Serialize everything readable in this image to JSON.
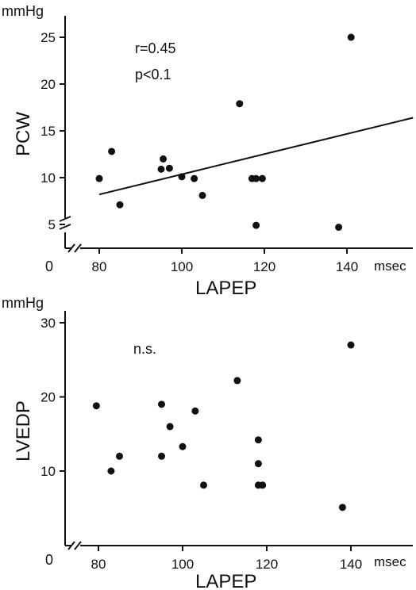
{
  "chart_data": [
    {
      "type": "scatter",
      "unit_y": "mmHg",
      "unit_x": "msec",
      "xlabel": "LAPEP",
      "ylabel": "PCW",
      "x_origin_label": "0",
      "xticks": [
        80,
        100,
        120,
        140
      ],
      "yticks": [
        5,
        10,
        15,
        20,
        25
      ],
      "annotations": [
        "r=0.45",
        "p<0.1"
      ],
      "points": [
        {
          "x": 80,
          "y": 9.9
        },
        {
          "x": 83,
          "y": 12.8
        },
        {
          "x": 85,
          "y": 7.1
        },
        {
          "x": 95,
          "y": 10.9
        },
        {
          "x": 95.5,
          "y": 12.0
        },
        {
          "x": 97,
          "y": 11.0
        },
        {
          "x": 100,
          "y": 10.1
        },
        {
          "x": 103,
          "y": 9.9
        },
        {
          "x": 105,
          "y": 8.1
        },
        {
          "x": 114,
          "y": 17.9
        },
        {
          "x": 117,
          "y": 9.9
        },
        {
          "x": 118,
          "y": 4.9
        },
        {
          "x": 118,
          "y": 9.9
        },
        {
          "x": 119.5,
          "y": 9.9
        },
        {
          "x": 138,
          "y": 4.7
        },
        {
          "x": 141,
          "y": 25.0
        }
      ],
      "regression_line": [
        {
          "x": 80,
          "y": 8.2
        },
        {
          "x": 156,
          "y": 16.4
        }
      ]
    },
    {
      "type": "scatter",
      "unit_y": "mmHg",
      "unit_x": "msec",
      "xlabel": "LAPEP",
      "ylabel": "LVEDP",
      "x_origin_label": "0",
      "xticks": [
        80,
        100,
        120,
        140
      ],
      "yticks": [
        10,
        20,
        30
      ],
      "annotations": [
        "n.s."
      ],
      "points": [
        {
          "x": 79.5,
          "y": 18.8
        },
        {
          "x": 83,
          "y": 10.0
        },
        {
          "x": 85,
          "y": 12.0
        },
        {
          "x": 95,
          "y": 19.0
        },
        {
          "x": 95,
          "y": 12.0
        },
        {
          "x": 97,
          "y": 16.0
        },
        {
          "x": 100,
          "y": 13.3
        },
        {
          "x": 103,
          "y": 18.1
        },
        {
          "x": 105,
          "y": 8.1
        },
        {
          "x": 113,
          "y": 22.2
        },
        {
          "x": 118,
          "y": 14.2
        },
        {
          "x": 118,
          "y": 11.0
        },
        {
          "x": 118,
          "y": 8.1
        },
        {
          "x": 119,
          "y": 8.1
        },
        {
          "x": 138,
          "y": 5.1
        },
        {
          "x": 140,
          "y": 27.0
        }
      ]
    }
  ]
}
